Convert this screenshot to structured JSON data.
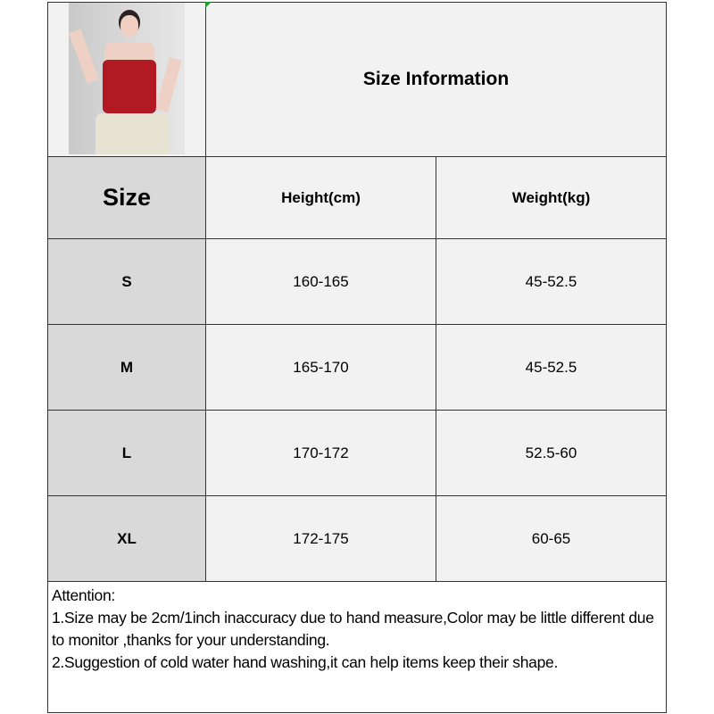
{
  "header": {
    "title": "Size Information",
    "product_image": "woman-in-red-camisole-photo"
  },
  "table": {
    "columns": [
      "Size",
      "Height(cm)",
      "Weight(kg)"
    ],
    "rows": [
      {
        "size": "S",
        "height": "160-165",
        "weight": "45-52.5"
      },
      {
        "size": "M",
        "height": "165-170",
        "weight": "45-52.5"
      },
      {
        "size": "L",
        "height": "170-172",
        "weight": "52.5-60"
      },
      {
        "size": "XL",
        "height": "172-175",
        "weight": "60-65"
      }
    ]
  },
  "notes": {
    "heading": "Attention:",
    "lines": [
      "1.Size may be 2cm/1inch inaccuracy due to hand measure,Color may be little different due to monitor ,thanks for your understanding.",
      "2.Suggestion of cold water hand washing,it can help items keep their shape."
    ]
  },
  "colors": {
    "label_column": "#d9d9d9",
    "cell": "#f2f2f2",
    "border": "#333333",
    "marker": "#1e9e2e"
  }
}
